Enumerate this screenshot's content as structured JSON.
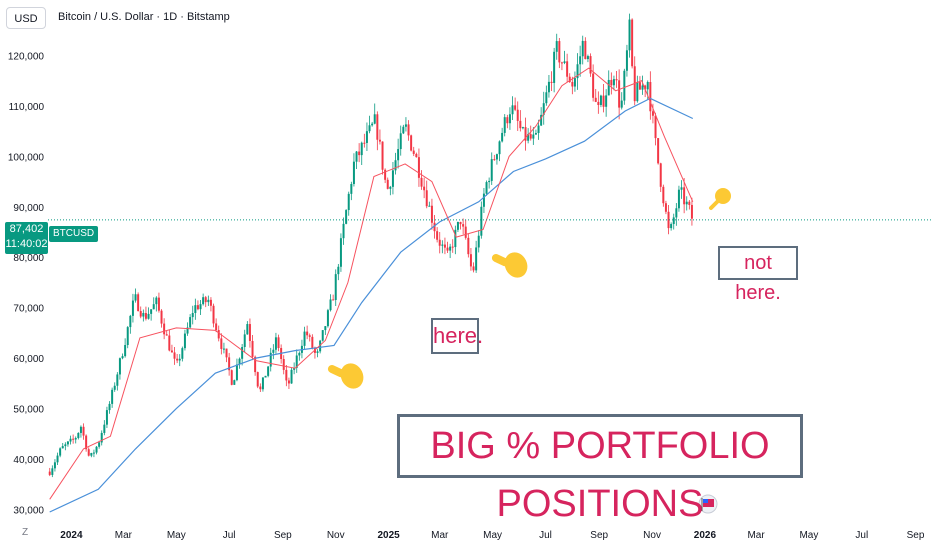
{
  "header": {
    "currency": "USD",
    "title": "Bitcoin / U.S. Dollar · 1D · Bitstamp"
  },
  "price_tag": {
    "price": "87,402",
    "countdown": "11:40:02",
    "ticker": "BTCUSD"
  },
  "annotations": {
    "here": "here.",
    "not_here": "not here.",
    "headline": "BIG % PORTFOLIO POSITIONS"
  },
  "footer": {
    "z_label": "Z"
  },
  "icons": [
    "hand-pointing-icon",
    "arrow-up-right-icon",
    "flag-icon"
  ],
  "colors": {
    "up": "#089981",
    "down": "#f23645",
    "ema_fast": "#f7525f",
    "sma_slow": "#4a90d9",
    "annotation_text": "#d6245e",
    "annotation_border": "#5d6d7e",
    "hand": "#fcc934"
  },
  "chart_data": {
    "type": "candlestick",
    "title": "Bitcoin / U.S. Dollar · 1D · Bitstamp",
    "y_ticks": [
      30000,
      40000,
      50000,
      60000,
      70000,
      80000,
      90000,
      100000,
      110000,
      120000
    ],
    "y_tick_labels": [
      "30,000",
      "40,000",
      "50,000",
      "60,000",
      "70,000",
      "80,000",
      "90,000",
      "100,000",
      "110,000",
      "120,000"
    ],
    "ylim": [
      28500,
      131000
    ],
    "x_range": [
      "2023-12-05",
      "2026-09-20"
    ],
    "x_ticks": [
      {
        "date": "2024-01-01",
        "label": "2024",
        "bold": true
      },
      {
        "date": "2024-03-01",
        "label": "Mar"
      },
      {
        "date": "2024-05-01",
        "label": "May"
      },
      {
        "date": "2024-07-01",
        "label": "Jul"
      },
      {
        "date": "2024-09-01",
        "label": "Sep"
      },
      {
        "date": "2024-11-01",
        "label": "Nov"
      },
      {
        "date": "2025-01-01",
        "label": "2025",
        "bold": true
      },
      {
        "date": "2025-03-01",
        "label": "Mar"
      },
      {
        "date": "2025-05-01",
        "label": "May"
      },
      {
        "date": "2025-07-01",
        "label": "Jul"
      },
      {
        "date": "2025-09-01",
        "label": "Sep"
      },
      {
        "date": "2025-11-01",
        "label": "Nov"
      },
      {
        "date": "2026-01-01",
        "label": "2026",
        "bold": true
      },
      {
        "date": "2026-03-01",
        "label": "Mar"
      },
      {
        "date": "2026-05-01",
        "label": "May"
      },
      {
        "date": "2026-07-01",
        "label": "Jul"
      },
      {
        "date": "2026-09-01",
        "label": "Sep"
      }
    ],
    "price_path": [
      [
        "2023-12-07",
        37500
      ],
      [
        "2023-12-20",
        42000
      ],
      [
        "2024-01-05",
        44000
      ],
      [
        "2024-01-12",
        46500
      ],
      [
        "2024-01-22",
        40000
      ],
      [
        "2024-02-01",
        43000
      ],
      [
        "2024-02-15",
        51500
      ],
      [
        "2024-03-01",
        62000
      ],
      [
        "2024-03-14",
        72000
      ],
      [
        "2024-03-25",
        68000
      ],
      [
        "2024-04-08",
        71000
      ],
      [
        "2024-04-20",
        64000
      ],
      [
        "2024-05-01",
        58000
      ],
      [
        "2024-05-21",
        70000
      ],
      [
        "2024-06-07",
        71500
      ],
      [
        "2024-06-25",
        61000
      ],
      [
        "2024-07-05",
        55000
      ],
      [
        "2024-07-22",
        67000
      ],
      [
        "2024-08-05",
        53000
      ],
      [
        "2024-08-25",
        64000
      ],
      [
        "2024-09-06",
        54000
      ],
      [
        "2024-09-27",
        65500
      ],
      [
        "2024-10-10",
        60000
      ],
      [
        "2024-10-29",
        72500
      ],
      [
        "2024-11-12",
        88000
      ],
      [
        "2024-11-22",
        98500
      ],
      [
        "2024-12-05",
        103000
      ],
      [
        "2024-12-17",
        107000
      ],
      [
        "2024-12-30",
        93000
      ],
      [
        "2025-01-20",
        106000
      ],
      [
        "2025-02-01",
        100000
      ],
      [
        "2025-02-26",
        84000
      ],
      [
        "2025-03-10",
        80000
      ],
      [
        "2025-03-25",
        87500
      ],
      [
        "2025-04-08",
        76500
      ],
      [
        "2025-04-22",
        93500
      ],
      [
        "2025-05-10",
        104000
      ],
      [
        "2025-05-22",
        110000
      ],
      [
        "2025-06-05",
        104000
      ],
      [
        "2025-06-20",
        103000
      ],
      [
        "2025-07-14",
        121000
      ],
      [
        "2025-08-02",
        114000
      ],
      [
        "2025-08-14",
        123000
      ],
      [
        "2025-08-30",
        108500
      ],
      [
        "2025-09-18",
        117000
      ],
      [
        "2025-09-26",
        109000
      ],
      [
        "2025-10-06",
        125000
      ],
      [
        "2025-10-11",
        112000
      ],
      [
        "2025-10-27",
        115000
      ],
      [
        "2025-11-06",
        101000
      ],
      [
        "2025-11-21",
        84000
      ],
      [
        "2025-12-03",
        93000
      ],
      [
        "2025-12-12",
        90000
      ],
      [
        "2025-12-18",
        87400
      ]
    ],
    "ma_fast_path": [
      [
        "2023-12-07",
        32000
      ],
      [
        "2024-01-15",
        42000
      ],
      [
        "2024-02-15",
        44500
      ],
      [
        "2024-03-20",
        64000
      ],
      [
        "2024-05-01",
        66000
      ],
      [
        "2024-06-15",
        65500
      ],
      [
        "2024-08-01",
        59500
      ],
      [
        "2024-09-15",
        58000
      ],
      [
        "2024-10-20",
        63500
      ],
      [
        "2024-11-15",
        75000
      ],
      [
        "2024-12-15",
        96000
      ],
      [
        "2025-01-20",
        98500
      ],
      [
        "2025-02-20",
        95000
      ],
      [
        "2025-03-20",
        84000
      ],
      [
        "2025-04-20",
        85500
      ],
      [
        "2025-05-20",
        100000
      ],
      [
        "2025-06-20",
        106000
      ],
      [
        "2025-07-20",
        114000
      ],
      [
        "2025-08-20",
        117500
      ],
      [
        "2025-09-20",
        113000
      ],
      [
        "2025-10-20",
        115000
      ],
      [
        "2025-11-15",
        104000
      ],
      [
        "2025-12-18",
        91000
      ]
    ],
    "ma_slow_path": [
      [
        "2023-12-07",
        29500
      ],
      [
        "2024-02-01",
        34000
      ],
      [
        "2024-03-15",
        42000
      ],
      [
        "2024-05-01",
        50000
      ],
      [
        "2024-06-15",
        57000
      ],
      [
        "2024-08-01",
        60000
      ],
      [
        "2024-09-15",
        61500
      ],
      [
        "2024-10-30",
        62500
      ],
      [
        "2024-12-01",
        71000
      ],
      [
        "2025-01-15",
        81000
      ],
      [
        "2025-03-01",
        87000
      ],
      [
        "2025-04-15",
        91000
      ],
      [
        "2025-05-25",
        97000
      ],
      [
        "2025-07-01",
        99500
      ],
      [
        "2025-08-15",
        103000
      ],
      [
        "2025-10-01",
        109000
      ],
      [
        "2025-10-30",
        111500
      ],
      [
        "2025-12-18",
        107500
      ]
    ],
    "last_price": 87402,
    "grid": false,
    "legend": "none"
  }
}
